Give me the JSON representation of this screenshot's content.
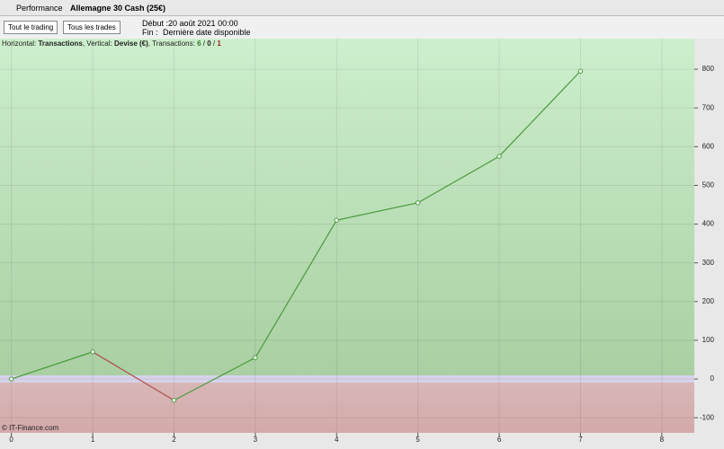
{
  "toolbar": {
    "performance": "Performance",
    "instrument": "Allemagne 30 Cash (25€)"
  },
  "filters": {
    "trading": "Tout le trading",
    "trades": "Tous les trades",
    "debut": "Début :20 août 2021 00:00",
    "fin_label": "Fin :",
    "fin_value": "Dernière date disponible"
  },
  "info": {
    "h_label": "Horizontal:",
    "h_value": "Transactions",
    "v_label": "Vertical:",
    "v_value": "Devise (€)",
    "t_label": "Transactions:",
    "t_win": "6",
    "t_sep1": "/",
    "t_even": "0",
    "t_sep2": "/",
    "t_loss": "1"
  },
  "watermark": "© IT-Finance.com",
  "chart_data": {
    "type": "line",
    "x": [
      0,
      1,
      2,
      3,
      4,
      5,
      6,
      7
    ],
    "series": [
      {
        "name": "Performance",
        "color": "#4a9a3c",
        "down_color": "#b04a4a",
        "values": [
          0,
          70,
          -55,
          55,
          410,
          455,
          575,
          795
        ]
      }
    ],
    "xlim": [
      -0.14,
      8.4
    ],
    "xticks": [
      0,
      1,
      2,
      3,
      4,
      5,
      6,
      7,
      8
    ],
    "ylim": [
      -139,
      879
    ],
    "yticks": [
      -100,
      0,
      100,
      200,
      300,
      400,
      500,
      600,
      700,
      800
    ],
    "grid": true
  }
}
